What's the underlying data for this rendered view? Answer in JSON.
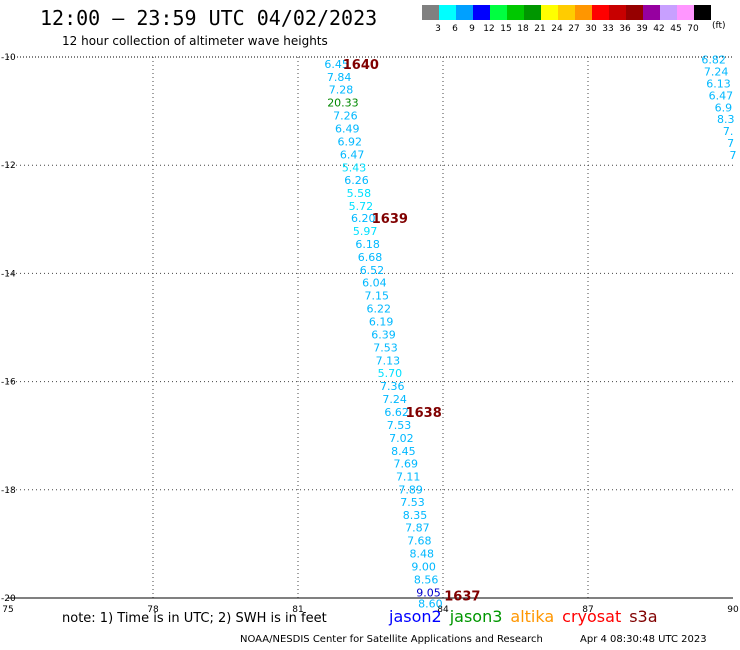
{
  "header": {
    "title": "12:00 — 23:59 UTC 04/02/2023",
    "subtitle": "12 hour collection of altimeter wave heights"
  },
  "colorbar": {
    "unit": "(ft)",
    "bins": [
      {
        "label": "3",
        "color": "#808080"
      },
      {
        "label": "6",
        "color": "#00ffff"
      },
      {
        "label": "9",
        "color": "#00a0ff"
      },
      {
        "label": "12",
        "color": "#0000ff"
      },
      {
        "label": "15",
        "color": "#00ff40"
      },
      {
        "label": "18",
        "color": "#00c800"
      },
      {
        "label": "21",
        "color": "#009600"
      },
      {
        "label": "24",
        "color": "#ffff00"
      },
      {
        "label": "27",
        "color": "#ffcc00"
      },
      {
        "label": "30",
        "color": "#ff9600"
      },
      {
        "label": "33",
        "color": "#ff0000"
      },
      {
        "label": "36",
        "color": "#c80000"
      },
      {
        "label": "39",
        "color": "#960000"
      },
      {
        "label": "42",
        "color": "#9600a0"
      },
      {
        "label": "45",
        "color": "#c8a0ff"
      },
      {
        "label": "70",
        "color": "#ff96ff"
      },
      {
        "label": "",
        "color": "#000000"
      }
    ]
  },
  "map": {
    "lon_min": 75,
    "lon_max": 90,
    "lat_min": -20,
    "lat_max": -10,
    "x_ticks": [
      "75",
      "78",
      "81",
      "84",
      "87",
      "90"
    ],
    "y_ticks": [
      "-10",
      "-12",
      "-14",
      "-16",
      "-18",
      "-20"
    ]
  },
  "tracks": [
    {
      "name": "main",
      "points": [
        {
          "lon": 81.8,
          "lat": -10.13,
          "label": "6.45",
          "color": "#00b8ff"
        },
        {
          "lon": 81.85,
          "lat": -10.37,
          "label": "7.84",
          "color": "#00b8ff"
        },
        {
          "lon": 81.89,
          "lat": -10.6,
          "label": "7.28",
          "color": "#00b8ff"
        },
        {
          "lon": 81.93,
          "lat": -10.84,
          "label": "20.33",
          "color": "#008800"
        },
        {
          "lon": 81.98,
          "lat": -11.08,
          "label": "7.26",
          "color": "#00b8ff"
        },
        {
          "lon": 82.02,
          "lat": -11.32,
          "label": "6.49",
          "color": "#00b8ff"
        },
        {
          "lon": 82.07,
          "lat": -11.56,
          "label": "6.92",
          "color": "#00b8ff"
        },
        {
          "lon": 82.12,
          "lat": -11.8,
          "label": "6.47",
          "color": "#00b8ff"
        },
        {
          "lon": 82.16,
          "lat": -12.04,
          "label": "5.43",
          "color": "#00e0ff"
        },
        {
          "lon": 82.21,
          "lat": -12.27,
          "label": "6.26",
          "color": "#00b8ff"
        },
        {
          "lon": 82.26,
          "lat": -12.51,
          "label": "5.58",
          "color": "#00e0ff"
        },
        {
          "lon": 82.3,
          "lat": -12.75,
          "label": "5.72",
          "color": "#00e0ff"
        },
        {
          "lon": 82.35,
          "lat": -12.98,
          "label": "6.20",
          "color": "#00b8ff"
        },
        {
          "lon": 82.39,
          "lat": -13.22,
          "label": "5.97",
          "color": "#00e0ff"
        },
        {
          "lon": 82.44,
          "lat": -13.46,
          "label": "6.18",
          "color": "#00b8ff"
        },
        {
          "lon": 82.49,
          "lat": -13.7,
          "label": "6.68",
          "color": "#00b8ff"
        },
        {
          "lon": 82.53,
          "lat": -13.94,
          "label": "6.52",
          "color": "#00b8ff"
        },
        {
          "lon": 82.58,
          "lat": -14.17,
          "label": "6.04",
          "color": "#00b8ff"
        },
        {
          "lon": 82.63,
          "lat": -14.41,
          "label": "7.15",
          "color": "#00b8ff"
        },
        {
          "lon": 82.67,
          "lat": -14.65,
          "label": "6.22",
          "color": "#00b8ff"
        },
        {
          "lon": 82.72,
          "lat": -14.89,
          "label": "6.19",
          "color": "#00b8ff"
        },
        {
          "lon": 82.77,
          "lat": -15.13,
          "label": "6.39",
          "color": "#00b8ff"
        },
        {
          "lon": 82.81,
          "lat": -15.37,
          "label": "7.53",
          "color": "#00b8ff"
        },
        {
          "lon": 82.86,
          "lat": -15.61,
          "label": "7.13",
          "color": "#00b8ff"
        },
        {
          "lon": 82.9,
          "lat": -15.84,
          "label": "5.70",
          "color": "#00e0ff"
        },
        {
          "lon": 82.95,
          "lat": -16.08,
          "label": "7.36",
          "color": "#00b8ff"
        },
        {
          "lon": 83.0,
          "lat": -16.32,
          "label": "7.24",
          "color": "#00b8ff"
        },
        {
          "lon": 83.04,
          "lat": -16.56,
          "label": "6.62",
          "color": "#00b8ff"
        },
        {
          "lon": 83.09,
          "lat": -16.8,
          "label": "7.53",
          "color": "#00b8ff"
        },
        {
          "lon": 83.14,
          "lat": -17.04,
          "label": "7.02",
          "color": "#00b8ff"
        },
        {
          "lon": 83.18,
          "lat": -17.28,
          "label": "8.45",
          "color": "#00b8ff"
        },
        {
          "lon": 83.23,
          "lat": -17.51,
          "label": "7.69",
          "color": "#00b8ff"
        },
        {
          "lon": 83.28,
          "lat": -17.75,
          "label": "7.11",
          "color": "#00b8ff"
        },
        {
          "lon": 83.33,
          "lat": -17.99,
          "label": "7.89",
          "color": "#00b8ff"
        },
        {
          "lon": 83.37,
          "lat": -18.23,
          "label": "7.53",
          "color": "#00b8ff"
        },
        {
          "lon": 83.42,
          "lat": -18.47,
          "label": "8.35",
          "color": "#00b8ff"
        },
        {
          "lon": 83.47,
          "lat": -18.7,
          "label": "7.87",
          "color": "#00b8ff"
        },
        {
          "lon": 83.51,
          "lat": -18.94,
          "label": "7.68",
          "color": "#00b8ff"
        },
        {
          "lon": 83.56,
          "lat": -19.18,
          "label": "8.48",
          "color": "#00b8ff"
        },
        {
          "lon": 83.6,
          "lat": -19.42,
          "label": "9.00",
          "color": "#00b8ff"
        },
        {
          "lon": 83.65,
          "lat": -19.66,
          "label": "8.56",
          "color": "#00b8ff"
        },
        {
          "lon": 83.7,
          "lat": -19.9,
          "label": "9.05",
          "color": "#0000cc"
        },
        {
          "lon": 83.74,
          "lat": -20.1,
          "label": "8.60",
          "color": "#00b8ff"
        }
      ]
    },
    {
      "name": "right",
      "points": [
        {
          "lon": 89.6,
          "lat": -10.05,
          "label": "6.82",
          "color": "#00b8ff"
        },
        {
          "lon": 89.65,
          "lat": -10.27,
          "label": "7.24",
          "color": "#00b8ff"
        },
        {
          "lon": 89.7,
          "lat": -10.49,
          "label": "6.13",
          "color": "#00b8ff"
        },
        {
          "lon": 89.75,
          "lat": -10.71,
          "label": "6.47",
          "color": "#00b8ff"
        },
        {
          "lon": 89.8,
          "lat": -10.93,
          "label": "6.9",
          "color": "#00b8ff"
        },
        {
          "lon": 89.85,
          "lat": -11.15,
          "label": "8.3",
          "color": "#00b8ff"
        },
        {
          "lon": 89.9,
          "lat": -11.37,
          "label": "7.",
          "color": "#00b8ff"
        },
        {
          "lon": 89.95,
          "lat": -11.59,
          "label": "7",
          "color": "#00b8ff"
        },
        {
          "lon": 90.0,
          "lat": -11.81,
          "label": "7",
          "color": "#00b8ff"
        }
      ]
    }
  ],
  "time_labels": [
    {
      "lon": 82.3,
      "lat": -10.13,
      "label": "1640",
      "color": "#800000"
    },
    {
      "lon": 82.9,
      "lat": -12.98,
      "label": "1639",
      "color": "#800000"
    },
    {
      "lon": 83.6,
      "lat": -16.56,
      "label": "1638",
      "color": "#800000"
    },
    {
      "lon": 84.4,
      "lat": -19.95,
      "label": "1637",
      "color": "#800000"
    }
  ],
  "footer": {
    "note": "note: 1) Time is in UTC; 2) SWH is in feet",
    "credit": "NOAA/NESDIS Center for Satellite Applications and Research",
    "timestamp": "Apr  4 08:30:48 UTC 2023"
  },
  "legend": [
    {
      "label": "jason2",
      "color": "#0000ff"
    },
    {
      "label": "jason3",
      "color": "#009600"
    },
    {
      "label": "altika",
      "color": "#ff9600"
    },
    {
      "label": "cryosat",
      "color": "#ff0000"
    },
    {
      "label": "s3a",
      "color": "#800000"
    }
  ]
}
